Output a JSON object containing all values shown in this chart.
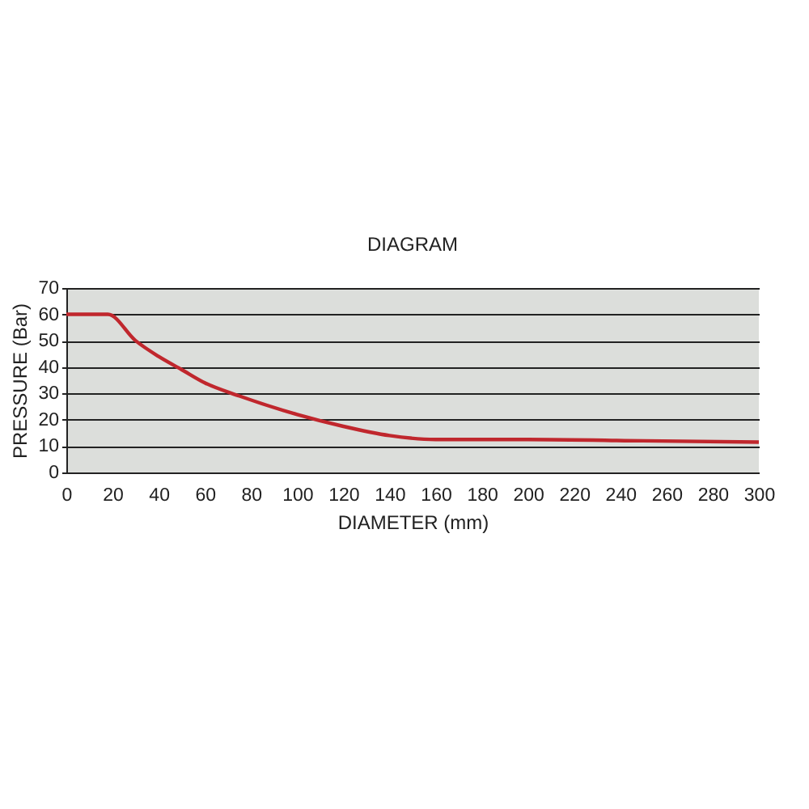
{
  "chart_data": {
    "type": "line",
    "title": "DIAGRAM",
    "xlabel": "DIAMETER (mm)",
    "ylabel": "PRESSURE (Bar)",
    "x": [
      0,
      18,
      30,
      40,
      50,
      60,
      75,
      100,
      120,
      140,
      160,
      200,
      250,
      300
    ],
    "series": [
      {
        "color": "#c0272d",
        "values": [
          60,
          60,
          50,
          44,
          39,
          34,
          29,
          22,
          17.5,
          14,
          12.5,
          12.5,
          12,
          11.5
        ]
      }
    ],
    "xlim": [
      0,
      300
    ],
    "xticks": [
      0,
      20,
      40,
      60,
      80,
      100,
      120,
      140,
      160,
      180,
      200,
      220,
      240,
      260,
      280,
      300
    ],
    "ylim": [
      0,
      70
    ],
    "yticks": [
      0,
      10,
      20,
      30,
      40,
      50,
      60,
      70
    ],
    "grid": "y",
    "legend": false,
    "marker": "none"
  }
}
